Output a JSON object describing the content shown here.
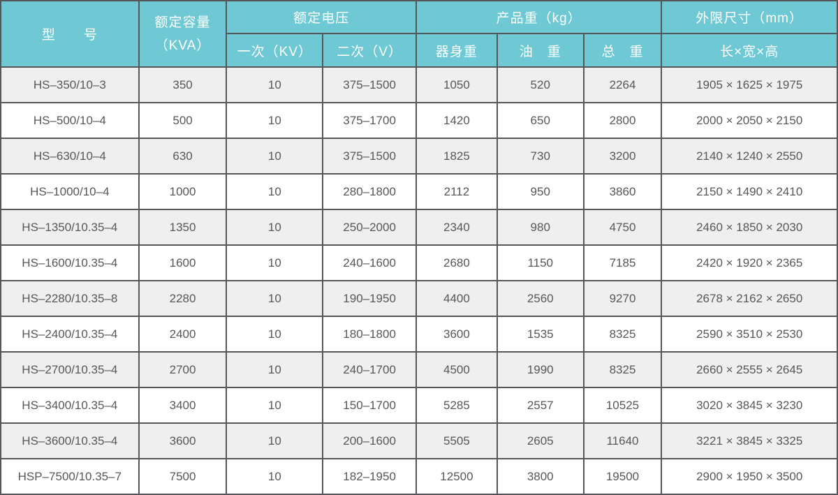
{
  "colors": {
    "header_bg": "#6EC9D4",
    "header_text": "#FFFFFF",
    "border": "#54565A",
    "row_alt_bg": "#EFEFEF",
    "row_bg": "#FFFFFF",
    "cell_text": "#56575B"
  },
  "chart_data": {
    "type": "table",
    "header_groups": {
      "model": "型　　号",
      "capacity": [
        "额定容量",
        "（KVA）"
      ],
      "voltage": {
        "group": "额定电压",
        "primary": "一次（KV）",
        "secondary": "二次（V）"
      },
      "weight": {
        "group": "产品重（kg）",
        "body": "器身重",
        "oil": "油　重",
        "total": "总　重"
      },
      "dimensions": {
        "group": "外限尺寸（mm）",
        "sub": "长×宽×高"
      }
    },
    "rows": [
      {
        "model": "HS–350/10–3",
        "capacity": "350",
        "primary_kv": "10",
        "secondary_v": "375–1500",
        "body_weight": "1050",
        "oil_weight": "520",
        "total_weight": "2264",
        "dimensions": "1905 × 1625 × 1975"
      },
      {
        "model": "HS–500/10–4",
        "capacity": "500",
        "primary_kv": "10",
        "secondary_v": "375–1700",
        "body_weight": "1420",
        "oil_weight": "650",
        "total_weight": "2800",
        "dimensions": "2000 × 2050 × 2150"
      },
      {
        "model": "HS–630/10–4",
        "capacity": "630",
        "primary_kv": "10",
        "secondary_v": "375–1500",
        "body_weight": "1825",
        "oil_weight": "730",
        "total_weight": "3200",
        "dimensions": "2140 × 1240 × 2550"
      },
      {
        "model": "HS–1000/10–4",
        "capacity": "1000",
        "primary_kv": "10",
        "secondary_v": "280–1800",
        "body_weight": "2112",
        "oil_weight": "950",
        "total_weight": "3860",
        "dimensions": "2150 × 1490 × 2410"
      },
      {
        "model": "HS–1350/10.35–4",
        "capacity": "1350",
        "primary_kv": "10",
        "secondary_v": "250–2000",
        "body_weight": "2340",
        "oil_weight": "980",
        "total_weight": "4750",
        "dimensions": "2460 × 1850 × 2030"
      },
      {
        "model": "HS–1600/10.35–4",
        "capacity": "1600",
        "primary_kv": "10",
        "secondary_v": "240–1600",
        "body_weight": "2680",
        "oil_weight": "1150",
        "total_weight": "7185",
        "dimensions": "2420 × 1920 × 2365"
      },
      {
        "model": "HS–2280/10.35–8",
        "capacity": "2280",
        "primary_kv": "10",
        "secondary_v": "190–1950",
        "body_weight": "4400",
        "oil_weight": "2560",
        "total_weight": "9270",
        "dimensions": "2678 × 2162 × 2650"
      },
      {
        "model": "HS–2400/10.35–4",
        "capacity": "2400",
        "primary_kv": "10",
        "secondary_v": "180–1800",
        "body_weight": "3600",
        "oil_weight": "1535",
        "total_weight": "8325",
        "dimensions": "2590 × 3510 × 2530"
      },
      {
        "model": "HS–2700/10.35–4",
        "capacity": "2700",
        "primary_kv": "10",
        "secondary_v": "240–1700",
        "body_weight": "4500",
        "oil_weight": "1990",
        "total_weight": "8325",
        "dimensions": "2660 × 2555 × 2645"
      },
      {
        "model": "HS–3400/10.35–4",
        "capacity": "3400",
        "primary_kv": "10",
        "secondary_v": "150–1700",
        "body_weight": "5285",
        "oil_weight": "2557",
        "total_weight": "10525",
        "dimensions": "3020 × 3845 × 3230"
      },
      {
        "model": "HS–3600/10.35–4",
        "capacity": "3600",
        "primary_kv": "10",
        "secondary_v": "200–1600",
        "body_weight": "5505",
        "oil_weight": "2605",
        "total_weight": "11640",
        "dimensions": "3221 × 3845 × 3325"
      },
      {
        "model": "HSP–7500/10.35–7",
        "capacity": "7500",
        "primary_kv": "10",
        "secondary_v": "182–1950",
        "body_weight": "12500",
        "oil_weight": "3800",
        "total_weight": "19500",
        "dimensions": "2900 × 1950 × 3500"
      }
    ]
  }
}
